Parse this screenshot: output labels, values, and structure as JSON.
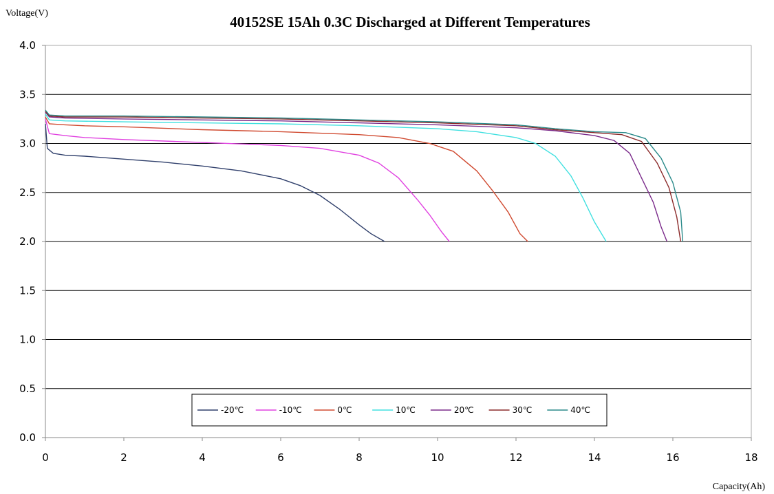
{
  "chart_data": {
    "type": "line",
    "title": "40152SE 15Ah 0.3C Discharged at Different Temperatures",
    "ylabel": "Voltage(V)",
    "xlabel": "Capacity(Ah)",
    "xlim": [
      0,
      18
    ],
    "ylim": [
      0,
      4
    ],
    "xticks": [
      "0",
      "2",
      "4",
      "6",
      "8",
      "10",
      "12",
      "14",
      "16",
      "18"
    ],
    "yticks": [
      "0.0",
      "0.5",
      "1.0",
      "1.5",
      "2.0",
      "2.5",
      "3.0",
      "3.5",
      "4.0"
    ],
    "grid": "horizontal",
    "legend_position": "bottom-center",
    "series": [
      {
        "name": "-20℃",
        "color": "#2f3f6b",
        "x": [
          0,
          0.05,
          0.2,
          0.5,
          1,
          2,
          3,
          4,
          5,
          6,
          6.5,
          7,
          7.5,
          8,
          8.3,
          8.65
        ],
        "y": [
          3.2,
          2.95,
          2.9,
          2.88,
          2.87,
          2.84,
          2.81,
          2.77,
          2.72,
          2.64,
          2.57,
          2.47,
          2.33,
          2.17,
          2.08,
          2.0
        ]
      },
      {
        "name": "-10℃",
        "color": "#e040e0",
        "x": [
          0,
          0.1,
          0.5,
          1,
          2,
          4,
          6,
          7,
          8,
          8.5,
          9,
          9.5,
          9.8,
          10.1,
          10.3
        ],
        "y": [
          3.25,
          3.1,
          3.08,
          3.06,
          3.04,
          3.01,
          2.98,
          2.95,
          2.88,
          2.8,
          2.65,
          2.42,
          2.27,
          2.1,
          2.0
        ]
      },
      {
        "name": "0℃",
        "color": "#d04a30",
        "x": [
          0,
          0.1,
          0.5,
          1,
          2,
          4,
          6,
          8,
          9,
          9.8,
          10.4,
          11,
          11.4,
          11.8,
          12.1,
          12.3
        ],
        "y": [
          3.27,
          3.2,
          3.19,
          3.18,
          3.17,
          3.14,
          3.12,
          3.09,
          3.06,
          3.0,
          2.92,
          2.72,
          2.52,
          2.3,
          2.08,
          2.0
        ]
      },
      {
        "name": "10℃",
        "color": "#40e0e0",
        "x": [
          0,
          0.1,
          0.5,
          2,
          4,
          6,
          8,
          10,
          11,
          12,
          12.5,
          13,
          13.4,
          13.7,
          14.0,
          14.3
        ],
        "y": [
          3.3,
          3.24,
          3.23,
          3.22,
          3.21,
          3.2,
          3.18,
          3.15,
          3.12,
          3.06,
          3.0,
          2.87,
          2.67,
          2.45,
          2.2,
          2.0
        ]
      },
      {
        "name": "20℃",
        "color": "#7a2a8a",
        "x": [
          0,
          0.1,
          0.5,
          2,
          4,
          6,
          8,
          10,
          12,
          13,
          14,
          14.5,
          14.9,
          15.2,
          15.5,
          15.7,
          15.85
        ],
        "y": [
          3.32,
          3.27,
          3.26,
          3.25,
          3.24,
          3.23,
          3.21,
          3.19,
          3.16,
          3.13,
          3.08,
          3.03,
          2.9,
          2.65,
          2.4,
          2.15,
          2.0
        ]
      },
      {
        "name": "30℃",
        "color": "#8b2a2a",
        "x": [
          0,
          0.1,
          0.5,
          2,
          4,
          6,
          8,
          10,
          12,
          13,
          14,
          14.7,
          15.2,
          15.6,
          15.9,
          16.1,
          16.2
        ],
        "y": [
          3.33,
          3.28,
          3.27,
          3.27,
          3.26,
          3.25,
          3.23,
          3.21,
          3.18,
          3.14,
          3.11,
          3.09,
          3.02,
          2.8,
          2.55,
          2.25,
          2.0
        ]
      },
      {
        "name": "40℃",
        "color": "#2a8a8a",
        "x": [
          0,
          0.1,
          0.5,
          2,
          4,
          6,
          8,
          10,
          12,
          13,
          14,
          14.8,
          15.3,
          15.7,
          16.0,
          16.2,
          16.25
        ],
        "y": [
          3.34,
          3.29,
          3.28,
          3.28,
          3.27,
          3.26,
          3.24,
          3.22,
          3.19,
          3.15,
          3.12,
          3.11,
          3.05,
          2.85,
          2.6,
          2.3,
          2.0
        ]
      }
    ]
  }
}
